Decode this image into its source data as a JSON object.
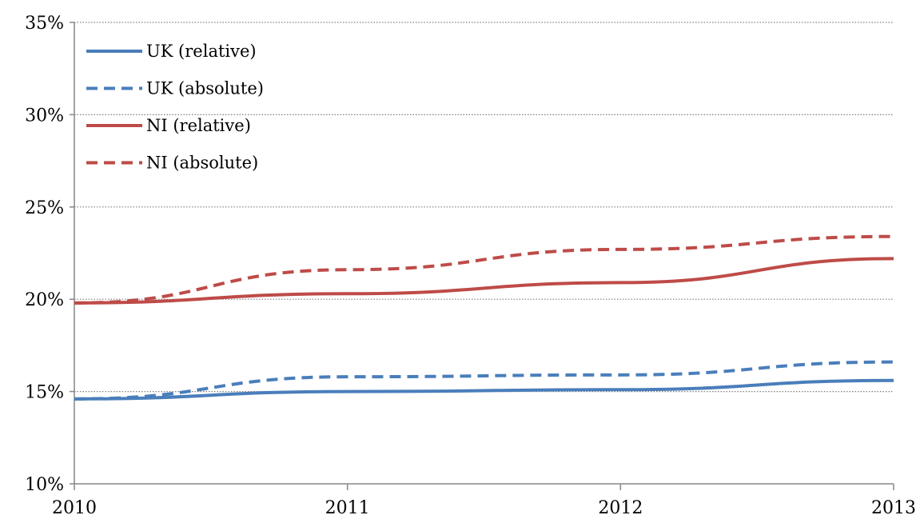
{
  "chart_data": {
    "type": "line",
    "x": [
      2010,
      2011,
      2012,
      2013
    ],
    "ylim": [
      10,
      35
    ],
    "yticks": [
      10,
      15,
      20,
      25,
      30,
      35
    ],
    "ytick_labels": [
      "10%",
      "15%",
      "20%",
      "25%",
      "30%",
      "35%"
    ],
    "xtick_labels": [
      "2010",
      "2011",
      "2012",
      "2013"
    ],
    "grid": "horizontal dotted",
    "legend_position": "top-left",
    "series": [
      {
        "name": "UK (relative)",
        "values": [
          14.6,
          15.0,
          15.1,
          15.6
        ],
        "color": "#4a7ebb",
        "dash": "solid"
      },
      {
        "name": "UK (absolute)",
        "values": [
          14.6,
          15.8,
          15.9,
          16.6
        ],
        "color": "#4a7ebb",
        "dash": "dashed"
      },
      {
        "name": "NI (relative)",
        "values": [
          19.8,
          20.3,
          20.9,
          22.2
        ],
        "color": "#be4b48",
        "dash": "solid"
      },
      {
        "name": "NI (absolute)",
        "values": [
          19.8,
          21.6,
          22.7,
          23.4
        ],
        "color": "#be4b48",
        "dash": "dashed"
      }
    ]
  }
}
